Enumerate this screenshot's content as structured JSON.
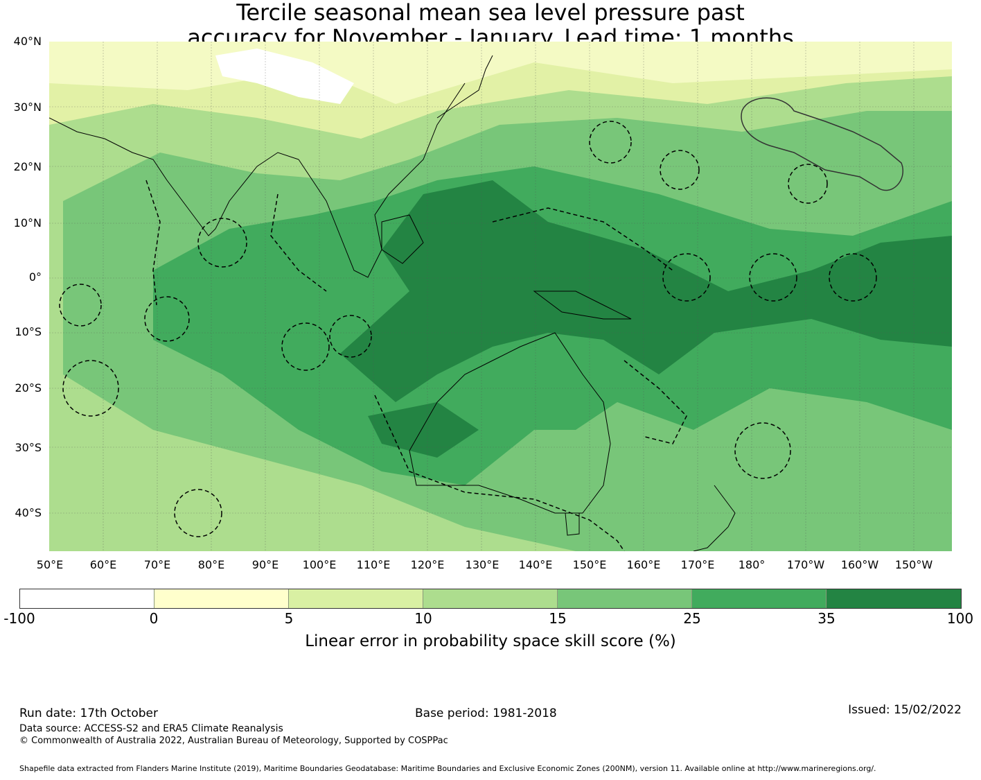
{
  "title": {
    "line1": "Tercile seasonal mean sea level pressure past",
    "line2": "accuracy for November - January. Lead time: 1 months"
  },
  "map": {
    "lat_labels": [
      "40°N",
      "30°N",
      "20°N",
      "10°N",
      "0°",
      "10°S",
      "20°S",
      "30°S",
      "40°S"
    ],
    "lon_labels": [
      "50°E",
      "60°E",
      "70°E",
      "80°E",
      "90°E",
      "100°E",
      "110°E",
      "120°E",
      "130°E",
      "140°E",
      "150°E",
      "160°E",
      "170°E",
      "180°",
      "170°W",
      "160°W",
      "150°W"
    ],
    "land_icon": "coastline-outline",
    "eez_icon": "dashed-boundary"
  },
  "colorbar": {
    "ticks": [
      "-100",
      "0",
      "5",
      "10",
      "15",
      "25",
      "35",
      "100"
    ],
    "colors": [
      "#ffffff",
      "#ffffcc",
      "#d9f0a3",
      "#addd8e",
      "#78c679",
      "#41ab5d",
      "#238443"
    ],
    "label": "Linear error in probability space skill score (%)"
  },
  "footer": {
    "run_date": "Run date: 17th October",
    "base_period": "Base period: 1981-2018",
    "issued": "Issued: 15/02/2022",
    "data_source": "Data source: ACCESS-S2 and ERA5 Climate Reanalysis",
    "copyright": "© Commonwealth of Australia 2022, Australian Bureau of Meteorology, Supported by COSPPac",
    "shapefile": "Shapefile data extracted from Flanders Marine Institute (2019), Maritime Boundaries Geodatabase: Maritime Boundaries and Exclusive Economic Zones (200NM), version 11. Available online at http://www.marineregions.org/."
  }
}
